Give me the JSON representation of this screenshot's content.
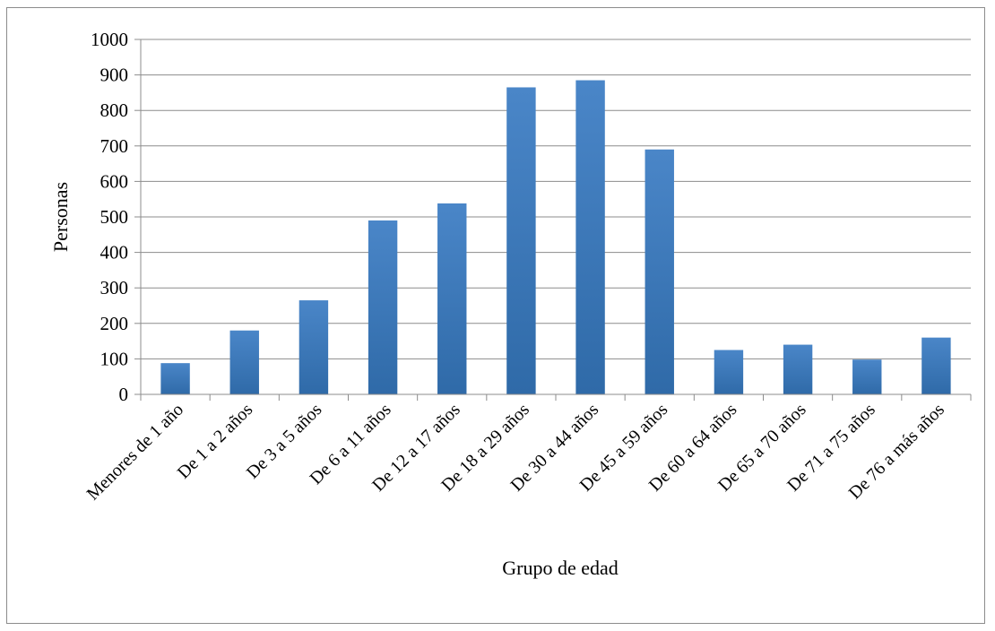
{
  "chart_data": {
    "type": "bar",
    "title": "",
    "xlabel": "Grupo de edad",
    "ylabel": "Personas",
    "ylim": [
      0,
      1000
    ],
    "ytick_step": 100,
    "grid": true,
    "legend": "none",
    "bar_color": "#4a86c8",
    "bar_color_dark": "#2f6aa8",
    "categories": [
      "Menores de 1 año",
      "De 1 a 2 años",
      "De 3 a 5 años",
      "De 6 a 11 años",
      "De 12 a 17 años",
      "De 18 a 29 años",
      "De 30 a 44 años",
      "De 45 a 59 años",
      "De 60 a 64 años",
      "De 65 a 70 años",
      "De 71 a 75 años",
      "De 76 a más años"
    ],
    "values": [
      88,
      180,
      265,
      490,
      538,
      865,
      885,
      690,
      125,
      140,
      98,
      160
    ]
  }
}
